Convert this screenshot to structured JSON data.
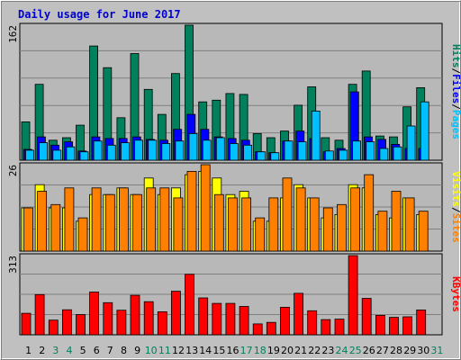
{
  "title": "Daily usage for June 2017",
  "colors": {
    "background": "#C0C0C0",
    "plot_bg": "#B8B8B8",
    "title": "#0000CC",
    "hits": "#00805C",
    "files": "#0000FF",
    "pages": "#00C0FF",
    "visits": "#FFFF00",
    "sites": "#FF8000",
    "kbytes": "#FF0000",
    "weekday": "#000000",
    "weekend": "#00805C"
  },
  "chart_data": [
    {
      "type": "bar",
      "name": "hits-files-pages",
      "ymax_label": "162",
      "ymax": 162,
      "labels": [
        {
          "text": "Hits",
          "color_key": "hits"
        },
        {
          "text": "/",
          "color_key": "weekday"
        },
        {
          "text": "Files",
          "color_key": "files"
        },
        {
          "text": "/",
          "color_key": "weekday"
        },
        {
          "text": "Pages",
          "color_key": "pages"
        }
      ],
      "categories": [
        "1",
        "2",
        "3",
        "4",
        "5",
        "6",
        "7",
        "8",
        "9",
        "10",
        "11",
        "12",
        "13",
        "14",
        "15",
        "16",
        "17",
        "18",
        "19",
        "20",
        "21",
        "22",
        "23",
        "24",
        "25",
        "26",
        "27",
        "28",
        "29",
        "30",
        "31"
      ],
      "series": [
        {
          "name": "Hits",
          "color_key": "hits",
          "values": [
            46,
            91,
            24,
            27,
            42,
            137,
            111,
            51,
            128,
            85,
            55,
            104,
            162,
            70,
            72,
            80,
            79,
            32,
            27,
            35,
            66,
            88,
            27,
            24,
            91,
            107,
            29,
            28,
            64,
            87,
            0
          ]
        },
        {
          "name": "Files",
          "color_key": "files",
          "values": [
            13,
            28,
            18,
            22,
            11,
            28,
            26,
            26,
            28,
            25,
            24,
            37,
            55,
            37,
            28,
            26,
            24,
            10,
            9,
            23,
            35,
            26,
            10,
            14,
            82,
            28,
            25,
            19,
            14,
            14,
            0
          ]
        },
        {
          "name": "Pages",
          "color_key": "pages",
          "values": [
            12,
            21,
            12,
            16,
            10,
            23,
            18,
            21,
            24,
            24,
            20,
            23,
            32,
            24,
            27,
            20,
            18,
            10,
            9,
            23,
            22,
            59,
            11,
            12,
            23,
            22,
            14,
            16,
            41,
            70,
            0
          ]
        }
      ]
    },
    {
      "type": "bar",
      "name": "visits-sites",
      "ymax_label": "26",
      "ymax": 26,
      "labels": [
        {
          "text": "Visits",
          "color_key": "visits"
        },
        {
          "text": "/",
          "color_key": "weekday"
        },
        {
          "text": "Sites",
          "color_key": "sites"
        }
      ],
      "categories": [
        "1",
        "2",
        "3",
        "4",
        "5",
        "6",
        "7",
        "8",
        "9",
        "10",
        "11",
        "12",
        "13",
        "14",
        "15",
        "16",
        "17",
        "18",
        "19",
        "20",
        "21",
        "22",
        "23",
        "24",
        "25",
        "26",
        "27",
        "28",
        "29",
        "30",
        "31"
      ],
      "series": [
        {
          "name": "Visits",
          "color_key": "visits",
          "values": [
            13,
            20,
            13,
            13,
            9,
            17,
            17,
            19,
            17,
            22,
            17,
            19,
            23,
            24,
            22,
            17,
            18,
            9,
            9,
            16,
            20,
            16,
            10,
            11,
            20,
            19,
            11,
            10,
            16,
            11,
            0
          ]
        },
        {
          "name": "Sites",
          "color_key": "sites",
          "values": [
            13,
            18,
            14,
            19,
            10,
            19,
            17,
            19,
            17,
            19,
            19,
            16,
            24,
            26,
            17,
            16,
            16,
            10,
            16,
            22,
            19,
            16,
            13,
            14,
            19,
            23,
            12,
            18,
            16,
            12,
            0
          ]
        }
      ]
    },
    {
      "type": "bar",
      "name": "kbytes",
      "ymax_label": "313",
      "ymax": 313,
      "labels": [
        {
          "text": "KBytes",
          "color_key": "kbytes"
        }
      ],
      "categories": [
        "1",
        "2",
        "3",
        "4",
        "5",
        "6",
        "7",
        "8",
        "9",
        "10",
        "11",
        "12",
        "13",
        "14",
        "15",
        "16",
        "17",
        "18",
        "19",
        "20",
        "21",
        "22",
        "23",
        "24",
        "25",
        "26",
        "27",
        "28",
        "29",
        "30",
        "31"
      ],
      "series": [
        {
          "name": "KBytes",
          "color_key": "kbytes",
          "values": [
            85,
            159,
            58,
            99,
            80,
            169,
            127,
            97,
            156,
            131,
            91,
            172,
            239,
            146,
            124,
            124,
            112,
            43,
            49,
            109,
            164,
            95,
            60,
            62,
            313,
            144,
            77,
            69,
            71,
            98,
            0
          ]
        }
      ]
    }
  ],
  "x_axis": {
    "days": [
      "1",
      "2",
      "3",
      "4",
      "5",
      "6",
      "7",
      "8",
      "9",
      "10",
      "11",
      "12",
      "13",
      "14",
      "15",
      "16",
      "17",
      "18",
      "19",
      "20",
      "21",
      "22",
      "23",
      "24",
      "25",
      "26",
      "27",
      "28",
      "29",
      "30",
      "31"
    ],
    "weekend_days": [
      "3",
      "4",
      "10",
      "11",
      "17",
      "18",
      "24",
      "25",
      "31"
    ]
  }
}
